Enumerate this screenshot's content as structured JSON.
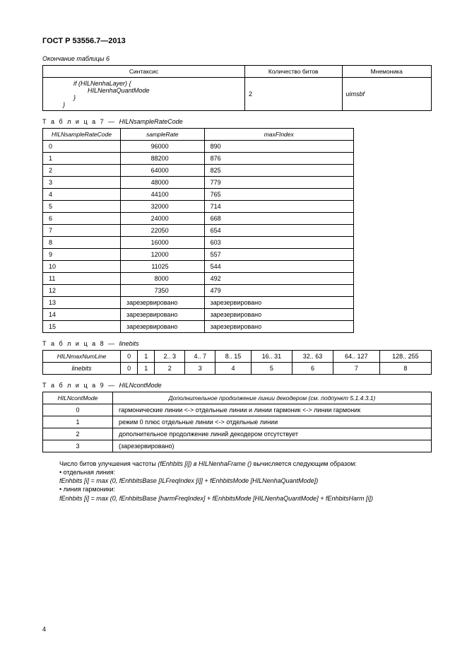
{
  "doc_header": "ГОСТ Р 53556.7—2013",
  "table6": {
    "caption": "Окончание таблицы 6",
    "headers": [
      "Синтаксис",
      "Количество битов",
      "Мнемоника"
    ],
    "rows": {
      "line1": "if (HILNenhaLayer)  {",
      "line2": "HILNenhaQuantMode",
      "line3": "}",
      "line4": "}",
      "bits": "2",
      "mnem": "uimsbf"
    }
  },
  "table7": {
    "caption_prefix": "Т а б л и ц а  7 — ",
    "caption_name": "HILNsampleRateCode",
    "headers": [
      "HILNsampleRateCode",
      "sampleRate",
      "maxFIndex"
    ],
    "rows": [
      [
        "0",
        "96000",
        "890"
      ],
      [
        "1",
        "88200",
        "876"
      ],
      [
        "2",
        "64000",
        "825"
      ],
      [
        "3",
        "48000",
        "779"
      ],
      [
        "4",
        "44100",
        "765"
      ],
      [
        "5",
        "32000",
        "714"
      ],
      [
        "6",
        "24000",
        "668"
      ],
      [
        "7",
        "22050",
        "654"
      ],
      [
        "8",
        "16000",
        "603"
      ],
      [
        "9",
        "12000",
        "557"
      ],
      [
        "10",
        "11025",
        "544"
      ],
      [
        "11",
        "8000",
        "492"
      ],
      [
        "12",
        "7350",
        "479"
      ],
      [
        "13",
        "зарезервировано",
        "зарезервировано"
      ],
      [
        "14",
        "зарезервировано",
        "зарезервировано"
      ],
      [
        "15",
        "зарезервировано",
        "зарезервировано"
      ]
    ],
    "reserved_rows": [
      13,
      14,
      15
    ]
  },
  "table8": {
    "caption_prefix": "Т а б л и ц а  8 — ",
    "caption_name": "linebits",
    "row1_label": "HILNmaxNumLine",
    "row1": [
      "0",
      "1",
      "2.. 3",
      "4.. 7",
      "8.. 15",
      "16.. 31",
      "32.. 63",
      "64.. 127",
      "128.. 255"
    ],
    "row2_label": "linebits",
    "row2": [
      "0",
      "1",
      "2",
      "3",
      "4",
      "5",
      "6",
      "7",
      "8"
    ]
  },
  "table9": {
    "caption_prefix": "Т а б л и ц а  9 — ",
    "caption_name": "HILNcontMode",
    "headers": [
      "HILNcontMode",
      "Дополнительное продолжение линии декодером (см. подпункт 5.1.4.3.1)"
    ],
    "rows": [
      [
        "0",
        "гармонические линии <-> отдельные линии и линии гармоник <-> линии гармоник"
      ],
      [
        "1",
        "режим 0 плюс отдельные линии <-> отдельные линии"
      ],
      [
        "2",
        "дополнительное продолжение линий декодером отсутствует"
      ],
      [
        "3",
        "(зарезервировано)"
      ]
    ]
  },
  "body": {
    "p1_a": "Число битов улучшения частоты ",
    "p1_b": "(fEnhbits [i]) в HILNenhaFrame ()",
    "p1_c": " вычисляется следующим образом:",
    "p2": "• отдельная линия:",
    "p3": "fEnhbits [i] = max (0, fEnhbitsBase [ILFreqIndex [i]] + fEnhbitsMode [HILNenhaQuantMode])",
    "p4": "• линия гармоники:",
    "p5": "fEnhbits [i] = max (0, fEnhbitsBase [harmFreqIndex] + fEnhbitsMode [HILNenhaQuantMode] + fEnhbitsHarm [i])"
  },
  "page_num": "4"
}
